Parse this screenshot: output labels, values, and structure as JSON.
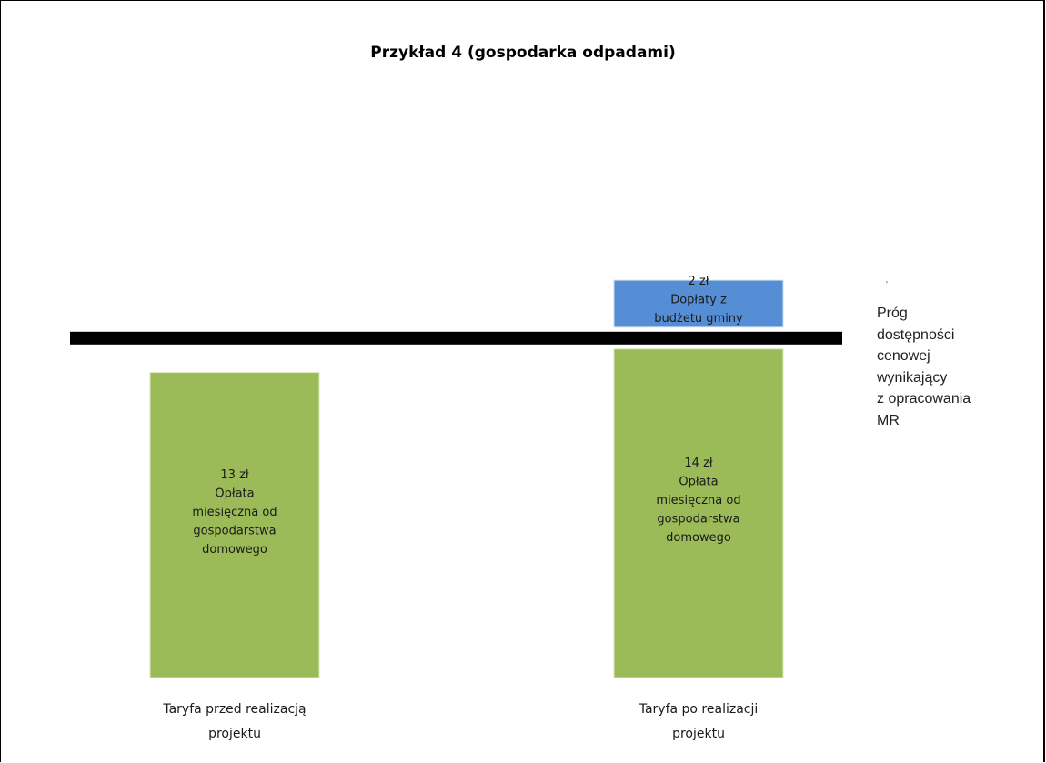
{
  "chart_data": {
    "type": "bar",
    "title": "Przykład 4 (gospodarka odpadami)",
    "categories": [
      [
        "Taryfa przed realizacją",
        "projektu"
      ],
      [
        "Taryfa po realizacji",
        "projektu"
      ]
    ],
    "series": [
      {
        "values": [
          13,
          14
        ],
        "color": "#9bbb59",
        "labels": [
          [
            "13 zł",
            "Opłata",
            "miesięczna od",
            "gospodarstwa",
            "domowego"
          ],
          [
            "14 zł",
            "Opłata",
            "miesięczna od",
            "gospodarstwa",
            "domowego"
          ]
        ]
      },
      {
        "values": [
          0,
          2
        ],
        "color": "#558ed5",
        "labels": [
          [],
          [
            "2 zł",
            "Dopłaty z",
            "budżetu gminy"
          ]
        ]
      }
    ],
    "threshold": {
      "value": 14,
      "color": "#000000",
      "label": [
        "Próg",
        "dostępności",
        "cenowej",
        "wynikający",
        "z opracowania",
        "MR"
      ],
      "marker": "'"
    },
    "ylim": [
      0,
      18
    ],
    "grid": false,
    "legend": "none"
  }
}
